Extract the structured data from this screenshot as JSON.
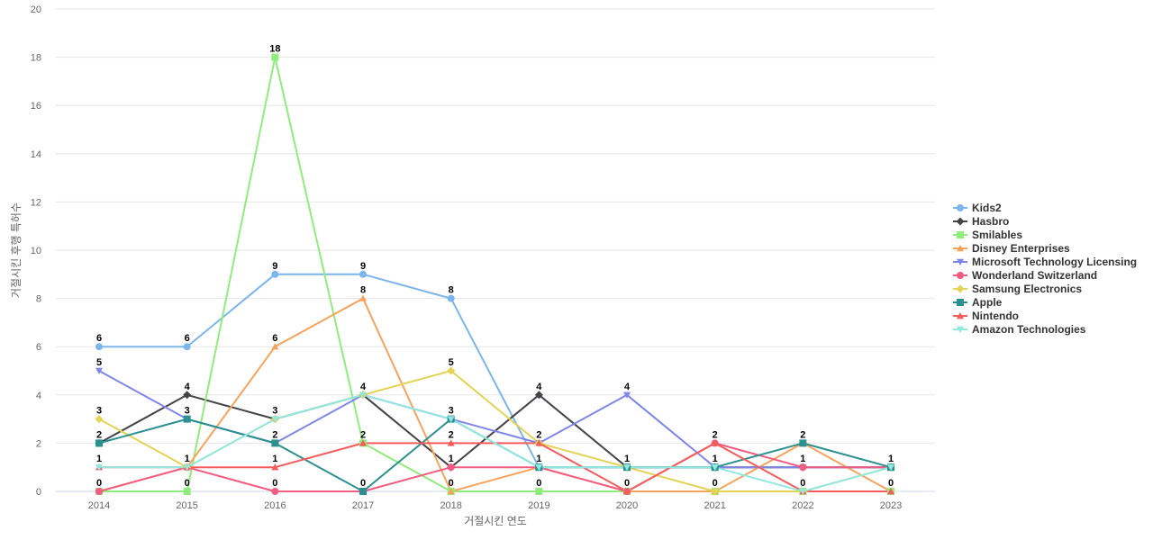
{
  "chart_data": {
    "type": "line",
    "xlabel": "거절시킨 연도",
    "ylabel": "거절시킨 후행 특허수",
    "x": [
      "2014",
      "2015",
      "2016",
      "2017",
      "2018",
      "2019",
      "2020",
      "2021",
      "2022",
      "2023"
    ],
    "ylim": [
      0,
      20
    ],
    "yticks": [
      0,
      2,
      4,
      6,
      8,
      10,
      12,
      14,
      16,
      18,
      20
    ],
    "grid": true,
    "legend_position": "right",
    "series": [
      {
        "name": "Kids2",
        "color": "#7cb5ec",
        "marker": "circle",
        "values": [
          6,
          6,
          9,
          9,
          8,
          1,
          1,
          1,
          1,
          1
        ]
      },
      {
        "name": "Hasbro",
        "color": "#434348",
        "marker": "diamond",
        "values": [
          2,
          4,
          3,
          4,
          1,
          4,
          1,
          1,
          1,
          1
        ]
      },
      {
        "name": "Smilables",
        "color": "#90ed7d",
        "marker": "square",
        "values": [
          0,
          0,
          18,
          2,
          0,
          0,
          0,
          0,
          0,
          0
        ]
      },
      {
        "name": "Disney Enterprises",
        "color": "#f7a35c",
        "marker": "triangle",
        "values": [
          0,
          1,
          6,
          8,
          0,
          1,
          0,
          0,
          2,
          0
        ]
      },
      {
        "name": "Microsoft Technology Licensing",
        "color": "#8085e9",
        "marker": "triangle-down",
        "values": [
          5,
          3,
          2,
          4,
          3,
          2,
          4,
          1,
          1,
          1
        ]
      },
      {
        "name": "Wonderland Switzerland",
        "color": "#f15c80",
        "marker": "circle",
        "values": [
          0,
          1,
          0,
          0,
          1,
          1,
          0,
          2,
          1,
          1
        ]
      },
      {
        "name": "Samsung Electronics",
        "color": "#e4d354",
        "marker": "diamond",
        "values": [
          3,
          1,
          3,
          4,
          5,
          2,
          1,
          0,
          0,
          1
        ]
      },
      {
        "name": "Apple",
        "color": "#2b908f",
        "marker": "square",
        "values": [
          2,
          3,
          2,
          0,
          3,
          1,
          1,
          1,
          2,
          1
        ]
      },
      {
        "name": "Nintendo",
        "color": "#f45b5b",
        "marker": "triangle",
        "values": [
          1,
          1,
          1,
          2,
          2,
          2,
          0,
          2,
          0,
          0
        ]
      },
      {
        "name": "Amazon Technologies",
        "color": "#91e8e1",
        "marker": "triangle-down",
        "values": [
          1,
          1,
          3,
          4,
          3,
          1,
          1,
          1,
          0,
          1
        ]
      }
    ],
    "data_labels": [
      {
        "x": "2014",
        "y": 6,
        "text": "6"
      },
      {
        "x": "2014",
        "y": 5,
        "text": "5"
      },
      {
        "x": "2014",
        "y": 3,
        "text": "3"
      },
      {
        "x": "2014",
        "y": 2,
        "text": "2"
      },
      {
        "x": "2014",
        "y": 1,
        "text": "1"
      },
      {
        "x": "2014",
        "y": 0,
        "text": "0"
      },
      {
        "x": "2015",
        "y": 6,
        "text": "6"
      },
      {
        "x": "2015",
        "y": 4,
        "text": "4"
      },
      {
        "x": "2015",
        "y": 3,
        "text": "3"
      },
      {
        "x": "2015",
        "y": 1,
        "text": "1"
      },
      {
        "x": "2015",
        "y": 0,
        "text": "0"
      },
      {
        "x": "2016",
        "y": 18,
        "text": "18"
      },
      {
        "x": "2016",
        "y": 9,
        "text": "9"
      },
      {
        "x": "2016",
        "y": 6,
        "text": "6"
      },
      {
        "x": "2016",
        "y": 3,
        "text": "3"
      },
      {
        "x": "2016",
        "y": 2,
        "text": "2"
      },
      {
        "x": "2016",
        "y": 1,
        "text": "1"
      },
      {
        "x": "2016",
        "y": 0,
        "text": "0"
      },
      {
        "x": "2017",
        "y": 9,
        "text": "9"
      },
      {
        "x": "2017",
        "y": 8,
        "text": "8"
      },
      {
        "x": "2017",
        "y": 4,
        "text": "4"
      },
      {
        "x": "2017",
        "y": 2,
        "text": "2"
      },
      {
        "x": "2017",
        "y": 0,
        "text": "0"
      },
      {
        "x": "2018",
        "y": 8,
        "text": "8"
      },
      {
        "x": "2018",
        "y": 5,
        "text": "5"
      },
      {
        "x": "2018",
        "y": 3,
        "text": "3"
      },
      {
        "x": "2018",
        "y": 2,
        "text": "2"
      },
      {
        "x": "2018",
        "y": 1,
        "text": "1"
      },
      {
        "x": "2018",
        "y": 0,
        "text": "0"
      },
      {
        "x": "2019",
        "y": 4,
        "text": "4"
      },
      {
        "x": "2019",
        "y": 2,
        "text": "2"
      },
      {
        "x": "2019",
        "y": 1,
        "text": "1"
      },
      {
        "x": "2019",
        "y": 0,
        "text": "0"
      },
      {
        "x": "2020",
        "y": 4,
        "text": "4"
      },
      {
        "x": "2020",
        "y": 1,
        "text": "1"
      },
      {
        "x": "2020",
        "y": 0,
        "text": "0"
      },
      {
        "x": "2021",
        "y": 2,
        "text": "2"
      },
      {
        "x": "2021",
        "y": 1,
        "text": "1"
      },
      {
        "x": "2021",
        "y": 0,
        "text": "0"
      },
      {
        "x": "2022",
        "y": 2,
        "text": "2"
      },
      {
        "x": "2022",
        "y": 1,
        "text": "1"
      },
      {
        "x": "2022",
        "y": 0,
        "text": "0"
      },
      {
        "x": "2023",
        "y": 1,
        "text": "1"
      },
      {
        "x": "2023",
        "y": 0,
        "text": "0"
      }
    ]
  }
}
